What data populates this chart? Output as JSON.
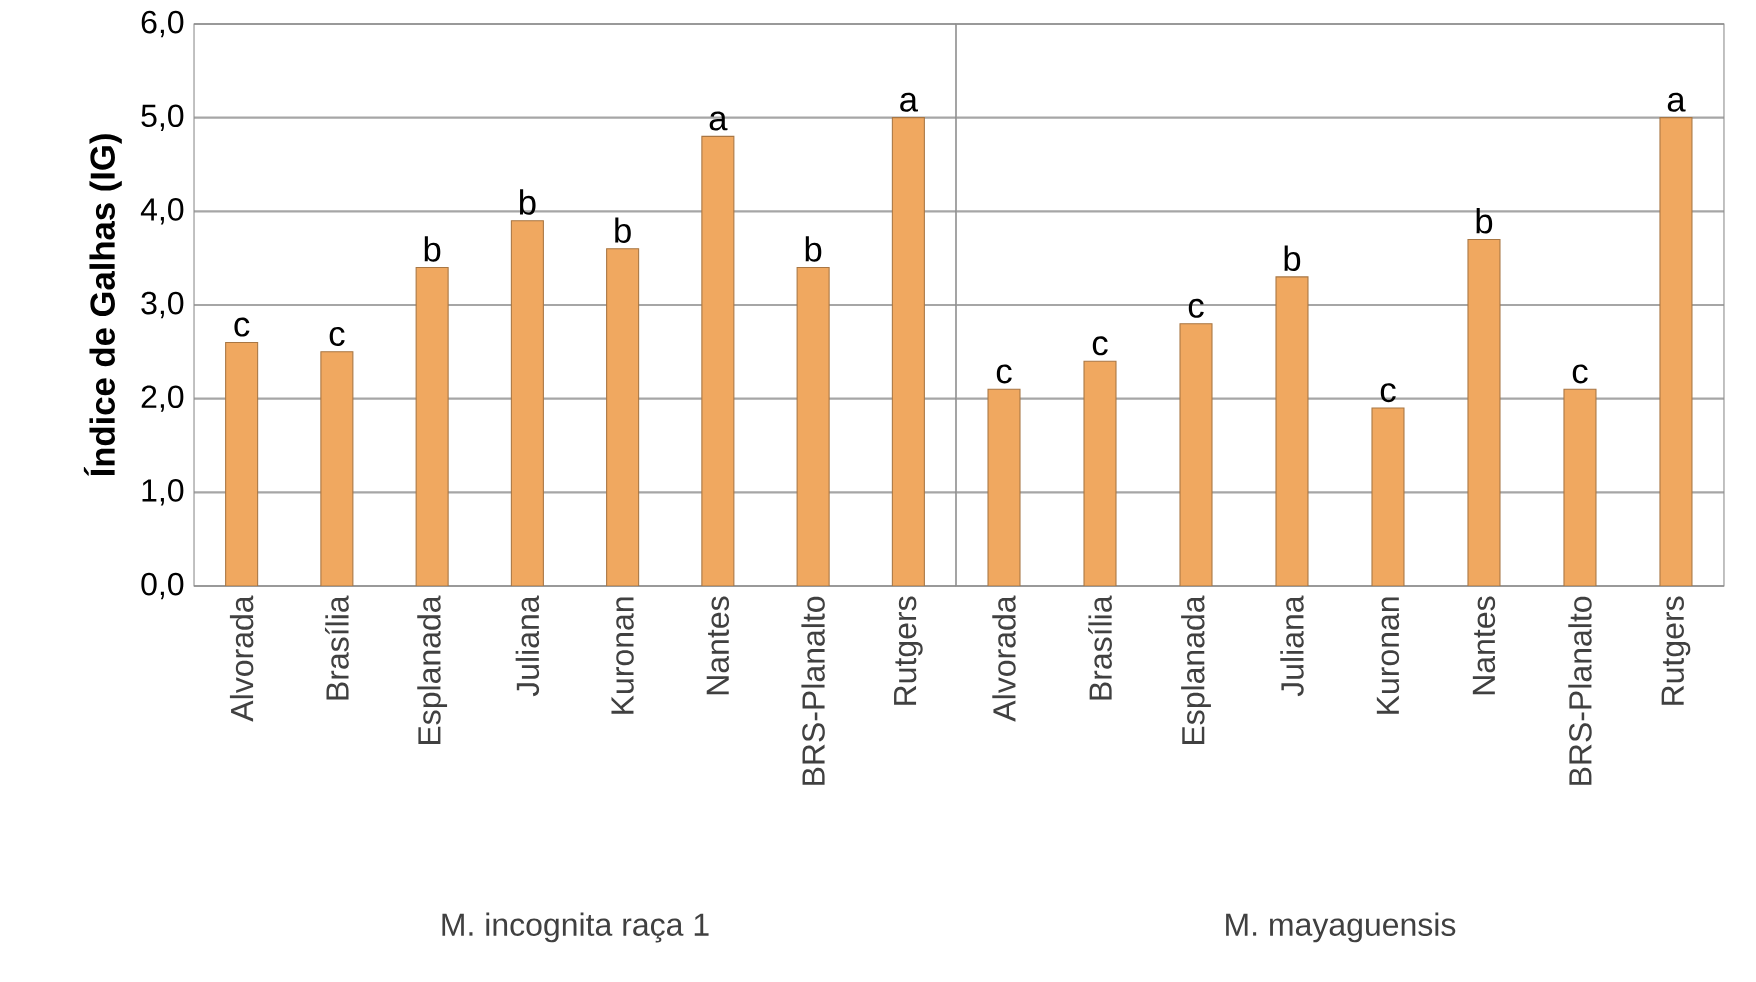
{
  "chart_data": [
    {
      "type": "bar",
      "ylabel": "Índice de Galhas (IG)",
      "xlabel": "M. incognita raça 1",
      "categories": [
        "Alvorada",
        "Brasília",
        "Esplanada",
        "Juliana",
        "Kuronan",
        "Nantes",
        "BRS-Planalto",
        "Rutgers"
      ],
      "values": [
        2.6,
        2.5,
        3.4,
        3.9,
        3.6,
        4.8,
        3.4,
        5.0
      ],
      "value_labels": [
        "c",
        "c",
        "b",
        "b",
        "b",
        "a",
        "b",
        "a"
      ],
      "color": "#f0a860",
      "ylim": [
        0,
        6
      ],
      "yticks": [
        {
          "value": 0,
          "label": "0,0"
        },
        {
          "value": 1,
          "label": "1,0"
        },
        {
          "value": 2,
          "label": "2,0"
        },
        {
          "value": 3,
          "label": "3,0"
        },
        {
          "value": 4,
          "label": "4,0"
        },
        {
          "value": 5,
          "label": "5,0"
        },
        {
          "value": 6,
          "label": "6,0"
        }
      ],
      "grid": "y"
    },
    {
      "type": "bar",
      "xlabel": "M. mayaguensis",
      "categories": [
        "Alvorada",
        "Brasília",
        "Esplanada",
        "Juliana",
        "Kuronan",
        "Nantes",
        "BRS-Planalto",
        "Rutgers"
      ],
      "values": [
        2.1,
        2.4,
        2.8,
        3.3,
        1.9,
        3.7,
        2.1,
        5.0
      ],
      "value_labels": [
        "c",
        "c",
        "c",
        "b",
        "c",
        "b",
        "c",
        "a"
      ],
      "color": "#f0a860",
      "ylim": [
        0,
        6
      ],
      "yticks": [
        0,
        1,
        2,
        3,
        4,
        5,
        6
      ],
      "grid": "y",
      "tick_labels": "x"
    }
  ]
}
